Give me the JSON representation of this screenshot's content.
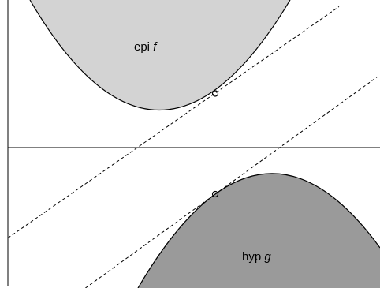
{
  "regions": [
    {
      "label": "epi",
      "var": "f"
    },
    {
      "label": "hyp",
      "var": "g"
    }
  ]
}
